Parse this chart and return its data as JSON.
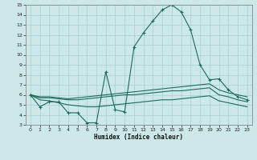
{
  "xlabel": "Humidex (Indice chaleur)",
  "bg_color": "#cce8e8",
  "line_color": "#1a6b5a",
  "grid_color": "#aacece",
  "xlim": [
    -0.5,
    23.5
  ],
  "ylim": [
    3,
    15
  ],
  "xticks": [
    0,
    1,
    2,
    3,
    4,
    5,
    6,
    7,
    8,
    9,
    10,
    11,
    12,
    13,
    14,
    15,
    16,
    17,
    18,
    19,
    20,
    21,
    22,
    23
  ],
  "yticks": [
    3,
    4,
    5,
    6,
    7,
    8,
    9,
    10,
    11,
    12,
    13,
    14,
    15
  ],
  "line1_x": [
    0,
    1,
    2,
    3,
    4,
    5,
    6,
    7,
    8,
    9,
    10,
    11,
    12,
    13,
    14,
    15,
    16,
    17,
    18,
    19,
    20,
    21,
    22,
    23
  ],
  "line1_y": [
    6.0,
    4.8,
    5.3,
    5.3,
    4.2,
    4.2,
    3.2,
    3.2,
    8.3,
    4.5,
    4.3,
    10.8,
    12.2,
    13.4,
    14.5,
    15.0,
    14.3,
    12.5,
    9.0,
    7.5,
    7.6,
    6.5,
    5.8,
    5.5
  ],
  "line2_x": [
    0,
    1,
    2,
    3,
    4,
    5,
    6,
    7,
    8,
    9,
    10,
    11,
    12,
    13,
    14,
    15,
    16,
    17,
    18,
    19,
    20,
    21,
    22,
    23
  ],
  "line2_y": [
    6.0,
    5.8,
    5.8,
    5.7,
    5.6,
    5.7,
    5.8,
    5.9,
    6.0,
    6.1,
    6.2,
    6.3,
    6.4,
    6.5,
    6.6,
    6.7,
    6.8,
    6.9,
    7.0,
    7.1,
    6.5,
    6.2,
    6.0,
    5.8
  ],
  "line3_x": [
    0,
    1,
    2,
    3,
    4,
    5,
    6,
    7,
    8,
    9,
    10,
    11,
    12,
    13,
    14,
    15,
    16,
    17,
    18,
    19,
    20,
    21,
    22,
    23
  ],
  "line3_y": [
    6.0,
    5.7,
    5.7,
    5.6,
    5.5,
    5.5,
    5.6,
    5.7,
    5.8,
    5.9,
    6.0,
    6.0,
    6.1,
    6.2,
    6.3,
    6.4,
    6.4,
    6.5,
    6.6,
    6.7,
    6.0,
    5.8,
    5.5,
    5.3
  ],
  "line4_x": [
    0,
    1,
    2,
    3,
    4,
    5,
    6,
    7,
    8,
    9,
    10,
    11,
    12,
    13,
    14,
    15,
    16,
    17,
    18,
    19,
    20,
    21,
    22,
    23
  ],
  "line4_y": [
    6.0,
    5.5,
    5.4,
    5.2,
    5.0,
    4.9,
    4.8,
    4.8,
    4.9,
    5.0,
    5.1,
    5.2,
    5.3,
    5.4,
    5.5,
    5.5,
    5.6,
    5.7,
    5.8,
    5.9,
    5.4,
    5.2,
    5.0,
    4.8
  ]
}
